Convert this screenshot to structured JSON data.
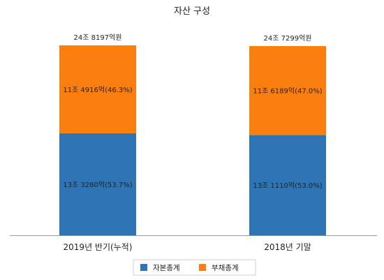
{
  "chart_data": {
    "type": "bar",
    "stacked": true,
    "title": "자산 구성",
    "categories": [
      "2019년 반기(누적)",
      "2018년 기말"
    ],
    "totals": [
      "24조 8197억원",
      "24조 7299억원"
    ],
    "series": [
      {
        "name": "자본총계",
        "color": "#2e75b6",
        "values": [
          13.328,
          13.111
        ],
        "labels": [
          "13조 3280억(53.7%)",
          "13조 1110억(53.0%)"
        ]
      },
      {
        "name": "부채총계",
        "color": "#fb7f0f",
        "values": [
          11.4916,
          11.6189
        ],
        "labels": [
          "11조 4916억(46.3%)",
          "11조 6189억(47.0%)"
        ]
      }
    ],
    "value_unit": "조원",
    "grid": false,
    "legend_position": "bottom"
  }
}
